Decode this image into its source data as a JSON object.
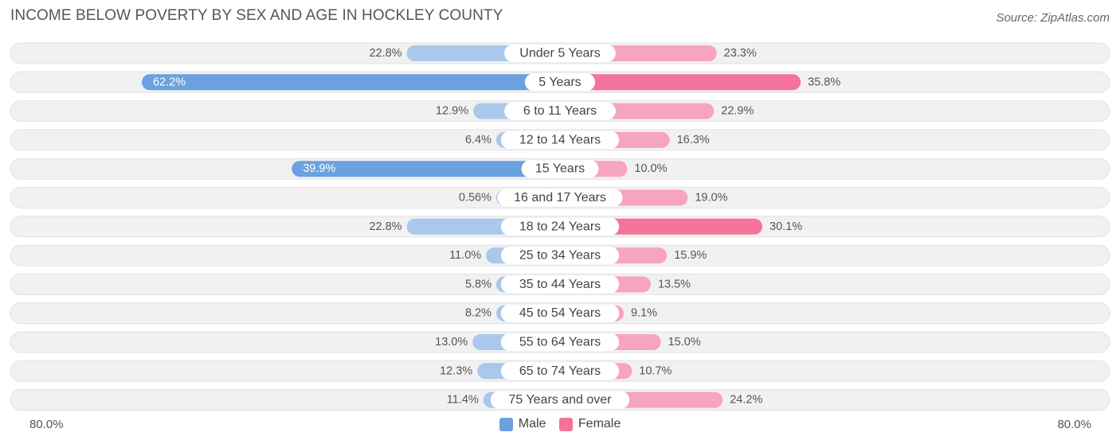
{
  "chart_data": {
    "type": "bar",
    "orientation": "horizontal-diverging",
    "title": "INCOME BELOW POVERTY BY SEX AND AGE IN HOCKLEY COUNTY",
    "source": "Source: ZipAtlas.com",
    "categories": [
      "Under 5 Years",
      "5 Years",
      "6 to 11 Years",
      "12 to 14 Years",
      "15 Years",
      "16 and 17 Years",
      "18 to 24 Years",
      "25 to 34 Years",
      "35 to 44 Years",
      "45 to 54 Years",
      "55 to 64 Years",
      "65 to 74 Years",
      "75 Years and over"
    ],
    "series": [
      {
        "name": "Male",
        "values": [
          22.8,
          62.2,
          12.9,
          6.4,
          39.9,
          0.56,
          22.8,
          11.0,
          5.8,
          8.2,
          13.0,
          12.3,
          11.4
        ],
        "labels": [
          "22.8%",
          "62.2%",
          "12.9%",
          "6.4%",
          "39.9%",
          "0.56%",
          "22.8%",
          "11.0%",
          "5.8%",
          "8.2%",
          "13.0%",
          "12.3%",
          "11.4%"
        ]
      },
      {
        "name": "Female",
        "values": [
          23.3,
          35.8,
          22.9,
          16.3,
          10.0,
          19.0,
          30.1,
          15.9,
          13.5,
          9.1,
          15.0,
          10.7,
          24.2
        ],
        "labels": [
          "23.3%",
          "35.8%",
          "22.9%",
          "16.3%",
          "10.0%",
          "19.0%",
          "30.1%",
          "15.9%",
          "13.5%",
          "9.1%",
          "15.0%",
          "10.7%",
          "24.2%"
        ]
      }
    ],
    "xlim": [
      -80,
      80
    ],
    "axis_left_label": "80.0%",
    "axis_right_label": "80.0%",
    "legend": [
      "Male",
      "Female"
    ],
    "colors": {
      "male_strong": "#6aa1de",
      "male_light": "#a9c8eb",
      "female_strong": "#f4739b",
      "female_light": "#f7a4be",
      "row_bg": "#f1f1f1",
      "row_border": "#e2e2e2"
    }
  }
}
